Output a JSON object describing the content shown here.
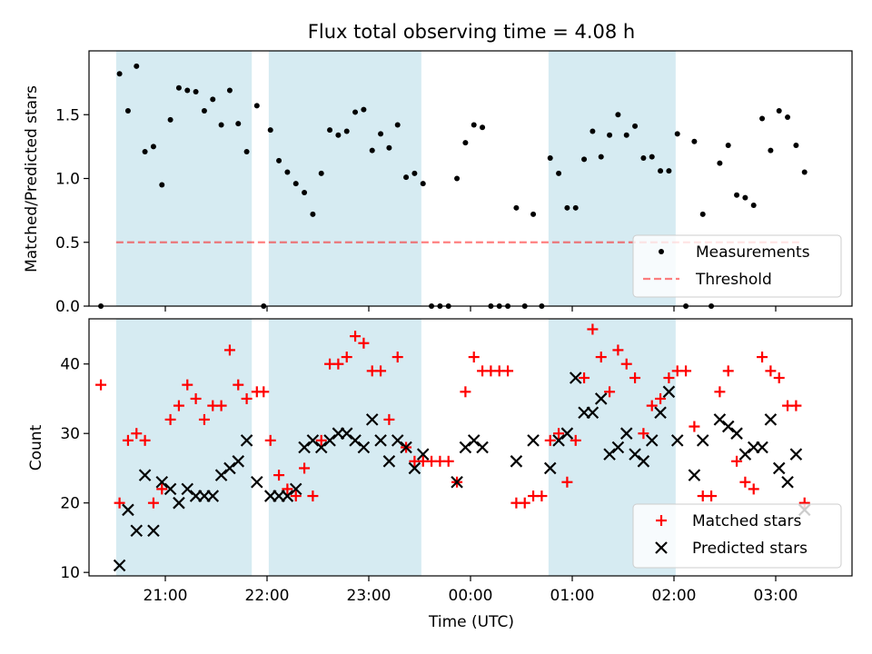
{
  "colors": {
    "band": "#add8e6",
    "measurement": "#000000",
    "threshold": "#ff0000",
    "matched": "#ff0000",
    "predicted": "#000000"
  },
  "chart_data": [
    {
      "type": "scatter",
      "title": "Flux total observing time = 4.08 h",
      "ylabel": "Matched/Predicted stars",
      "xlabel": "",
      "xlim": [
        "20:15",
        "03:45"
      ],
      "ylim": [
        0,
        2.0
      ],
      "yticks": [
        "0.0",
        "0.5",
        "1.0",
        "1.5"
      ],
      "shaded_intervals": [
        [
          "20:31",
          "21:51"
        ],
        [
          "22:01",
          "23:31"
        ],
        [
          "00:46",
          "02:01"
        ]
      ],
      "legend": {
        "position": "lower-right",
        "entries": [
          "Measurements",
          "Threshold"
        ]
      },
      "threshold": {
        "name": "Threshold",
        "value": 0.5,
        "x_range": [
          "20:31",
          "03:16"
        ]
      },
      "series": [
        {
          "name": "Measurements",
          "marker": "dot",
          "x": [
            "20:22",
            "20:33",
            "20:38",
            "20:43",
            "20:48",
            "20:53",
            "20:58",
            "21:03",
            "21:08",
            "21:13",
            "21:18",
            "21:23",
            "21:28",
            "21:33",
            "21:38",
            "21:43",
            "21:48",
            "21:54",
            "21:58",
            "22:02",
            "22:07",
            "22:12",
            "22:17",
            "22:22",
            "22:27",
            "22:32",
            "22:37",
            "22:42",
            "22:47",
            "22:52",
            "22:57",
            "23:02",
            "23:07",
            "23:12",
            "23:17",
            "23:22",
            "23:27",
            "23:32",
            "23:37",
            "23:42",
            "23:47",
            "23:52",
            "23:57",
            "00:02",
            "00:07",
            "00:12",
            "00:17",
            "00:22",
            "00:27",
            "00:32",
            "00:37",
            "00:42",
            "00:47",
            "00:52",
            "00:57",
            "01:02",
            "01:07",
            "01:12",
            "01:17",
            "01:22",
            "01:27",
            "01:32",
            "01:37",
            "01:42",
            "01:47",
            "01:52",
            "01:57",
            "02:02",
            "02:07",
            "02:12",
            "02:17",
            "02:22",
            "02:27",
            "02:32",
            "02:37",
            "02:42",
            "02:47",
            "02:52",
            "02:57",
            "03:02",
            "03:07",
            "03:12",
            "03:17"
          ],
          "y": [
            0.0,
            1.82,
            1.53,
            1.88,
            1.21,
            1.25,
            0.95,
            1.46,
            1.71,
            1.69,
            1.68,
            1.53,
            1.62,
            1.42,
            1.69,
            1.43,
            1.21,
            1.57,
            0.0,
            1.38,
            1.14,
            1.05,
            0.96,
            0.89,
            0.72,
            1.04,
            1.38,
            1.34,
            1.37,
            1.52,
            1.54,
            1.22,
            1.35,
            1.24,
            1.42,
            1.01,
            1.04,
            0.96,
            0.0,
            0.0,
            0.0,
            1.0,
            1.28,
            1.42,
            1.4,
            0.0,
            0.0,
            0.0,
            0.77,
            0.0,
            0.72,
            0.0,
            1.16,
            1.04,
            0.77,
            0.77,
            1.15,
            1.37,
            1.17,
            1.34,
            1.5,
            1.34,
            1.41,
            1.16,
            1.17,
            1.06,
            1.06,
            1.35,
            0.0,
            1.29,
            0.72,
            0.0,
            1.12,
            1.26,
            0.87,
            0.85,
            0.79,
            1.47,
            1.22,
            1.53,
            1.48,
            1.26,
            1.05
          ]
        }
      ]
    },
    {
      "type": "scatter",
      "title": "",
      "ylabel": "Count",
      "xlabel": "Time (UTC)",
      "xlim": [
        "20:15",
        "03:45"
      ],
      "ylim": [
        9.5,
        46.5
      ],
      "yticks": [
        "10",
        "20",
        "30",
        "40"
      ],
      "xticks": [
        "21:00",
        "22:00",
        "23:00",
        "00:00",
        "01:00",
        "02:00",
        "03:00"
      ],
      "shaded_intervals": [
        [
          "20:31",
          "21:51"
        ],
        [
          "22:01",
          "23:31"
        ],
        [
          "00:46",
          "02:01"
        ]
      ],
      "legend": {
        "position": "lower-right",
        "entries": [
          "Matched stars",
          "Predicted stars"
        ]
      },
      "series": [
        {
          "name": "Matched stars",
          "marker": "plus",
          "x": [
            "20:22",
            "20:33",
            "20:38",
            "20:43",
            "20:48",
            "20:53",
            "20:58",
            "21:03",
            "21:08",
            "21:13",
            "21:18",
            "21:23",
            "21:28",
            "21:33",
            "21:38",
            "21:43",
            "21:48",
            "21:54",
            "21:58",
            "22:02",
            "22:07",
            "22:12",
            "22:17",
            "22:22",
            "22:27",
            "22:32",
            "22:37",
            "22:42",
            "22:47",
            "22:52",
            "22:57",
            "23:02",
            "23:07",
            "23:12",
            "23:17",
            "23:22",
            "23:27",
            "23:32",
            "23:37",
            "23:42",
            "23:47",
            "23:52",
            "23:57",
            "00:02",
            "00:07",
            "00:12",
            "00:17",
            "00:22",
            "00:27",
            "00:32",
            "00:37",
            "00:42",
            "00:47",
            "00:52",
            "00:57",
            "01:02",
            "01:07",
            "01:12",
            "01:17",
            "01:22",
            "01:27",
            "01:32",
            "01:37",
            "01:42",
            "01:47",
            "01:52",
            "01:57",
            "02:02",
            "02:07",
            "02:12",
            "02:17",
            "02:22",
            "02:27",
            "02:32",
            "02:37",
            "02:42",
            "02:47",
            "02:52",
            "02:57",
            "03:02",
            "03:07",
            "03:12",
            "03:17"
          ],
          "y": [
            37,
            20,
            29,
            30,
            29,
            20,
            22,
            32,
            34,
            37,
            35,
            32,
            34,
            34,
            42,
            37,
            35,
            36,
            36,
            29,
            24,
            22,
            21,
            25,
            21,
            29,
            40,
            40,
            41,
            44,
            43,
            39,
            39,
            32,
            41,
            28,
            26,
            26,
            26,
            26,
            26,
            23,
            36,
            41,
            39,
            39,
            39,
            39,
            20,
            20,
            21,
            21,
            29,
            30,
            23,
            29,
            38,
            45,
            41,
            36,
            42,
            40,
            38,
            30,
            34,
            35,
            38,
            39,
            39,
            31,
            21,
            21,
            36,
            39,
            26,
            23,
            22,
            41,
            39,
            38,
            34,
            34,
            20
          ]
        },
        {
          "name": "Predicted stars",
          "marker": "x",
          "x": [
            "20:33",
            "20:38",
            "20:43",
            "20:48",
            "20:53",
            "20:58",
            "21:03",
            "21:08",
            "21:13",
            "21:18",
            "21:23",
            "21:28",
            "21:33",
            "21:38",
            "21:43",
            "21:48",
            "21:54",
            "22:02",
            "22:07",
            "22:12",
            "22:17",
            "22:22",
            "22:27",
            "22:32",
            "22:37",
            "22:42",
            "22:47",
            "22:52",
            "22:57",
            "23:02",
            "23:07",
            "23:12",
            "23:17",
            "23:22",
            "23:27",
            "23:32",
            "23:52",
            "23:57",
            "00:02",
            "00:07",
            "00:27",
            "00:37",
            "00:47",
            "00:52",
            "00:57",
            "01:02",
            "01:07",
            "01:12",
            "01:17",
            "01:22",
            "01:27",
            "01:32",
            "01:37",
            "01:42",
            "01:47",
            "01:52",
            "01:57",
            "02:02",
            "02:12",
            "02:17",
            "02:27",
            "02:32",
            "02:37",
            "02:42",
            "02:47",
            "02:52",
            "02:57",
            "03:02",
            "03:07",
            "03:12",
            "03:17"
          ],
          "y": [
            11,
            19,
            16,
            24,
            16,
            23,
            22,
            20,
            22,
            21,
            21,
            21,
            24,
            25,
            26,
            29,
            23,
            21,
            21,
            21,
            22,
            28,
            29,
            28,
            29,
            30,
            30,
            29,
            28,
            32,
            29,
            26,
            29,
            28,
            25,
            27,
            23,
            28,
            29,
            28,
            26,
            29,
            25,
            29,
            30,
            38,
            33,
            33,
            35,
            27,
            28,
            30,
            27,
            26,
            29,
            33,
            36,
            29,
            24,
            29,
            32,
            31,
            30,
            27,
            28,
            28,
            32,
            25,
            23,
            27,
            19
          ]
        }
      ]
    }
  ]
}
